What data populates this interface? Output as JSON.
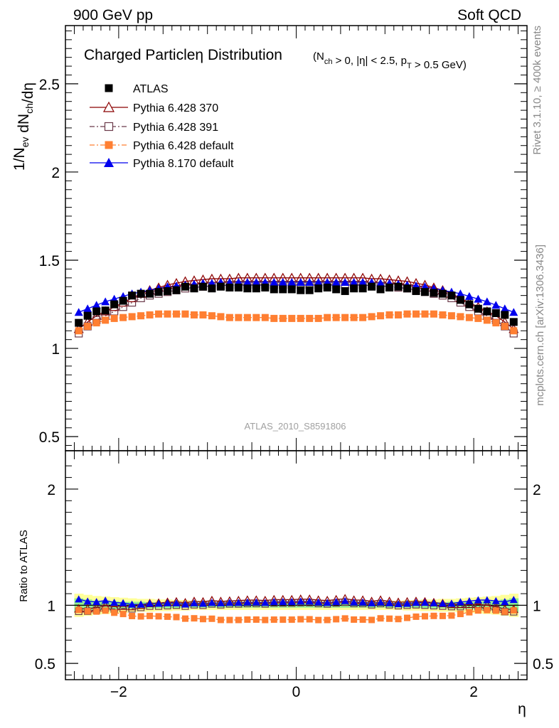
{
  "header": {
    "left": "900 GeV pp",
    "right": "Soft QCD"
  },
  "side_text": {
    "rivet": "Rivet 3.1.10, ≥ 400k events",
    "mcplots": "mcplots.cern.ch [arXiv:1306.3436]"
  },
  "watermark": "ATLAS_2010_S8591806",
  "title": {
    "main": "Charged Particle",
    "eta": "η",
    "dist": " Distribution",
    "cuts": "(N_ch > 0, |η| < 2.5, p_T > 0.5 GeV)"
  },
  "colors": {
    "atlas": "#000000",
    "p370": "#8b0000",
    "p391": "#6b3a4a",
    "pdefault": "#ff7f32",
    "p8": "#0000ee",
    "band_inner": "#90ee90",
    "band_outer": "#ffff99"
  },
  "chart_data": [
    {
      "type": "scatter",
      "panel": "main",
      "ylabel": "1/N_ev dN_ch/dη",
      "xlabel": "",
      "ylim": [
        0.42,
        2.83
      ],
      "xlim": [
        -2.6,
        2.6
      ],
      "yticks": [
        0.5,
        1,
        1.5,
        2,
        2.5
      ],
      "ytick_labels": [
        "0.5",
        "1",
        "1.5",
        "2",
        "2.5"
      ],
      "legend_position": "top-left",
      "x": [
        -2.45,
        -2.35,
        -2.25,
        -2.15,
        -2.05,
        -1.95,
        -1.85,
        -1.75,
        -1.65,
        -1.55,
        -1.45,
        -1.35,
        -1.25,
        -1.15,
        -1.05,
        -0.95,
        -0.85,
        -0.75,
        -0.65,
        -0.55,
        -0.45,
        -0.35,
        -0.25,
        -0.15,
        -0.05,
        0.05,
        0.15,
        0.25,
        0.35,
        0.45,
        0.55,
        0.65,
        0.75,
        0.85,
        0.95,
        1.05,
        1.15,
        1.25,
        1.35,
        1.45,
        1.55,
        1.65,
        1.75,
        1.85,
        1.95,
        2.05,
        2.15,
        2.25,
        2.35,
        2.45
      ],
      "series": [
        {
          "name": "ATLAS",
          "key": "atlas",
          "marker": "square-filled",
          "line": "none",
          "values": [
            1.145,
            1.185,
            1.21,
            1.215,
            1.25,
            1.27,
            1.3,
            1.31,
            1.31,
            1.32,
            1.325,
            1.33,
            1.35,
            1.34,
            1.35,
            1.34,
            1.35,
            1.345,
            1.345,
            1.34,
            1.34,
            1.345,
            1.335,
            1.335,
            1.335,
            1.33,
            1.33,
            1.34,
            1.345,
            1.335,
            1.325,
            1.34,
            1.34,
            1.35,
            1.335,
            1.345,
            1.35,
            1.34,
            1.325,
            1.32,
            1.315,
            1.31,
            1.3,
            1.275,
            1.25,
            1.225,
            1.21,
            1.2,
            1.19,
            1.15
          ]
        },
        {
          "name": "Pythia 6.428 370",
          "key": "p370",
          "marker": "triangle-open",
          "line": "solid",
          "values": [
            1.11,
            1.15,
            1.185,
            1.21,
            1.235,
            1.26,
            1.285,
            1.31,
            1.33,
            1.345,
            1.36,
            1.37,
            1.38,
            1.385,
            1.39,
            1.395,
            1.395,
            1.395,
            1.4,
            1.4,
            1.4,
            1.4,
            1.4,
            1.4,
            1.4,
            1.4,
            1.4,
            1.4,
            1.4,
            1.4,
            1.4,
            1.4,
            1.4,
            1.395,
            1.395,
            1.39,
            1.385,
            1.38,
            1.37,
            1.36,
            1.345,
            1.33,
            1.31,
            1.285,
            1.26,
            1.235,
            1.21,
            1.185,
            1.15,
            1.11
          ]
        },
        {
          "name": "Pythia 6.428 391",
          "key": "p391",
          "marker": "square-open",
          "line": "dash-dot",
          "values": [
            1.085,
            1.125,
            1.16,
            1.185,
            1.21,
            1.235,
            1.26,
            1.285,
            1.3,
            1.31,
            1.32,
            1.33,
            1.34,
            1.345,
            1.35,
            1.355,
            1.355,
            1.36,
            1.36,
            1.36,
            1.36,
            1.36,
            1.36,
            1.36,
            1.36,
            1.36,
            1.36,
            1.36,
            1.36,
            1.36,
            1.36,
            1.36,
            1.36,
            1.355,
            1.355,
            1.35,
            1.345,
            1.34,
            1.33,
            1.32,
            1.31,
            1.3,
            1.285,
            1.26,
            1.235,
            1.21,
            1.185,
            1.16,
            1.125,
            1.085
          ]
        },
        {
          "name": "Pythia 6.428 default",
          "key": "pdefault",
          "marker": "square-filled",
          "line": "dash-dot",
          "values": [
            1.1,
            1.125,
            1.145,
            1.16,
            1.17,
            1.175,
            1.18,
            1.185,
            1.19,
            1.195,
            1.195,
            1.195,
            1.195,
            1.19,
            1.19,
            1.185,
            1.18,
            1.175,
            1.175,
            1.175,
            1.175,
            1.175,
            1.17,
            1.17,
            1.17,
            1.17,
            1.17,
            1.17,
            1.175,
            1.175,
            1.175,
            1.175,
            1.175,
            1.18,
            1.185,
            1.19,
            1.19,
            1.195,
            1.195,
            1.195,
            1.195,
            1.19,
            1.185,
            1.18,
            1.175,
            1.17,
            1.16,
            1.145,
            1.125,
            1.1
          ]
        },
        {
          "name": "Pythia 8.170 default",
          "key": "p8",
          "marker": "triangle-filled",
          "line": "solid",
          "values": [
            1.205,
            1.225,
            1.245,
            1.265,
            1.28,
            1.295,
            1.31,
            1.32,
            1.33,
            1.34,
            1.35,
            1.355,
            1.36,
            1.365,
            1.37,
            1.37,
            1.375,
            1.375,
            1.375,
            1.375,
            1.375,
            1.375,
            1.375,
            1.375,
            1.375,
            1.375,
            1.375,
            1.375,
            1.375,
            1.375,
            1.375,
            1.375,
            1.375,
            1.375,
            1.37,
            1.37,
            1.365,
            1.36,
            1.355,
            1.35,
            1.34,
            1.33,
            1.32,
            1.31,
            1.295,
            1.28,
            1.265,
            1.245,
            1.225,
            1.205
          ]
        }
      ]
    },
    {
      "type": "scatter",
      "panel": "ratio",
      "ylabel": "Ratio to ATLAS",
      "xlabel": "η",
      "ylim": [
        0.36,
        2.33
      ],
      "xlim": [
        -2.6,
        2.6
      ],
      "yticks": [
        0.5,
        1,
        2
      ],
      "ytick_labels": [
        "0.5",
        "1",
        "2"
      ],
      "xticks": [
        -2,
        0,
        2
      ],
      "xtick_labels": [
        "−2",
        "0",
        "2"
      ],
      "band_inner": [
        0.06,
        0.05,
        0.04,
        0.04,
        0.035,
        0.03,
        0.03,
        0.03,
        0.025,
        0.025,
        0.025,
        0.025,
        0.02,
        0.02,
        0.02,
        0.02,
        0.02,
        0.02,
        0.02,
        0.02,
        0.02,
        0.02,
        0.02,
        0.02,
        0.02,
        0.02,
        0.02,
        0.02,
        0.02,
        0.02,
        0.02,
        0.02,
        0.02,
        0.02,
        0.02,
        0.02,
        0.02,
        0.02,
        0.025,
        0.025,
        0.025,
        0.025,
        0.03,
        0.03,
        0.03,
        0.035,
        0.04,
        0.04,
        0.05,
        0.06
      ],
      "band_outer": [
        0.1,
        0.09,
        0.08,
        0.075,
        0.07,
        0.065,
        0.06,
        0.055,
        0.055,
        0.05,
        0.05,
        0.045,
        0.045,
        0.04,
        0.04,
        0.04,
        0.04,
        0.04,
        0.04,
        0.04,
        0.04,
        0.04,
        0.04,
        0.04,
        0.04,
        0.04,
        0.04,
        0.04,
        0.04,
        0.04,
        0.04,
        0.04,
        0.04,
        0.04,
        0.04,
        0.04,
        0.04,
        0.045,
        0.045,
        0.05,
        0.05,
        0.055,
        0.055,
        0.06,
        0.065,
        0.07,
        0.075,
        0.08,
        0.09,
        0.1
      ]
    }
  ]
}
